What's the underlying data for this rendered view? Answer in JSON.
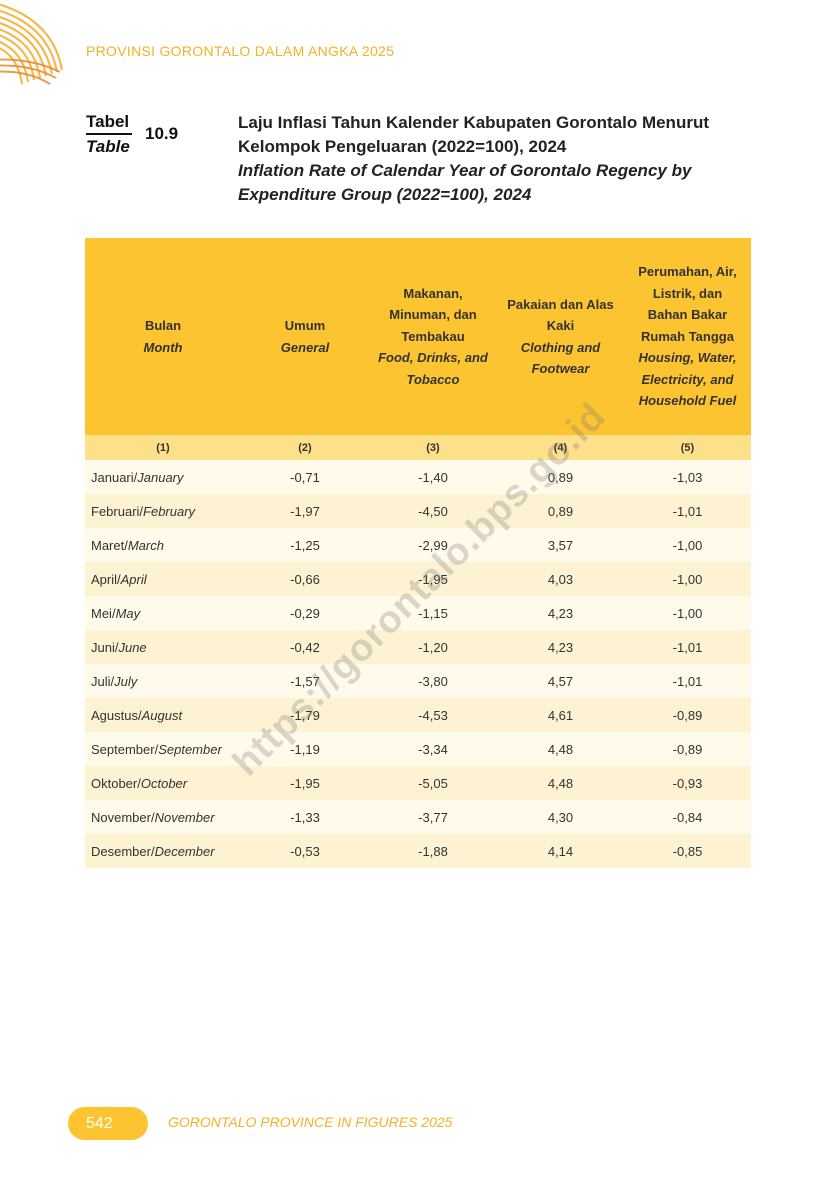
{
  "header": {
    "running_title": "PROVINSI GORONTALO DALAM ANGKA 2025"
  },
  "table_label": {
    "id": "Tabel",
    "en": "Table",
    "number": "10.9"
  },
  "title": {
    "id": "Laju Inflasi Tahun Kalender Kabupaten Gorontalo Menurut Kelompok Pengeluaran (2022=100), 2024",
    "en": "Inflation Rate of Calendar Year of Gorontalo Regency by Expenditure Group (2022=100), 2024"
  },
  "table": {
    "columns": [
      {
        "id": "Bulan",
        "en": "Month",
        "num": "(1)"
      },
      {
        "id": "Umum",
        "en": "General",
        "num": "(2)"
      },
      {
        "id": "Makanan, Minuman, dan Tembakau",
        "en": "Food, Drinks, and Tobacco",
        "num": "(3)"
      },
      {
        "id": "Pakaian dan Alas Kaki",
        "en": "Clothing and Footwear",
        "num": "(4)"
      },
      {
        "id": "Perumahan, Air, Listrik, dan Bahan Bakar Rumah Tangga",
        "en": "Housing, Water, Electricity, and Household Fuel",
        "num": "(5)"
      }
    ],
    "rows": [
      {
        "month_id": "Januari/",
        "month_en": "January",
        "general": "-0,71",
        "food": "-1,40",
        "clothing": "0,89",
        "housing": "-1,03"
      },
      {
        "month_id": "Februari/",
        "month_en": "February",
        "general": "-1,97",
        "food": "-4,50",
        "clothing": "0,89",
        "housing": "-1,01"
      },
      {
        "month_id": "Maret/",
        "month_en": "March",
        "general": "-1,25",
        "food": "-2,99",
        "clothing": "3,57",
        "housing": "-1,00"
      },
      {
        "month_id": "April/",
        "month_en": "April",
        "general": "-0,66",
        "food": "-1,95",
        "clothing": "4,03",
        "housing": "-1,00"
      },
      {
        "month_id": "Mei/",
        "month_en": "May",
        "general": "-0,29",
        "food": "-1,15",
        "clothing": "4,23",
        "housing": "-1,00"
      },
      {
        "month_id": "Juni/",
        "month_en": "June",
        "general": "-0,42",
        "food": "-1,20",
        "clothing": "4,23",
        "housing": "-1,01"
      },
      {
        "month_id": "Juli/",
        "month_en": "July",
        "general": "-1,57",
        "food": "-3,80",
        "clothing": "4,57",
        "housing": "-1,01"
      },
      {
        "month_id": "Agustus/",
        "month_en": "August",
        "general": "-1,79",
        "food": "-4,53",
        "clothing": "4,61",
        "housing": "-0,89"
      },
      {
        "month_id": "September/",
        "month_en": "September",
        "general": "-1,19",
        "food": "-3,34",
        "clothing": "4,48",
        "housing": "-0,89"
      },
      {
        "month_id": "Oktober/",
        "month_en": "October",
        "general": "-1,95",
        "food": "-5,05",
        "clothing": "4,48",
        "housing": "-0,93"
      },
      {
        "month_id": "November/",
        "month_en": "November",
        "general": "-1,33",
        "food": "-3,77",
        "clothing": "4,30",
        "housing": "-0,84"
      },
      {
        "month_id": "Desember/",
        "month_en": "December",
        "general": "-0,53",
        "food": "-1,88",
        "clothing": "4,14",
        "housing": "-0,85"
      }
    ]
  },
  "watermark": "https://gorontalo.bps.go.id",
  "footer": {
    "page_number": "542",
    "text": "GORONTALO PROVINCE IN FIGURES 2025"
  },
  "colors": {
    "accent": "#fcc431",
    "accent_text": "#f0b324",
    "subheader": "#fde08a"
  }
}
